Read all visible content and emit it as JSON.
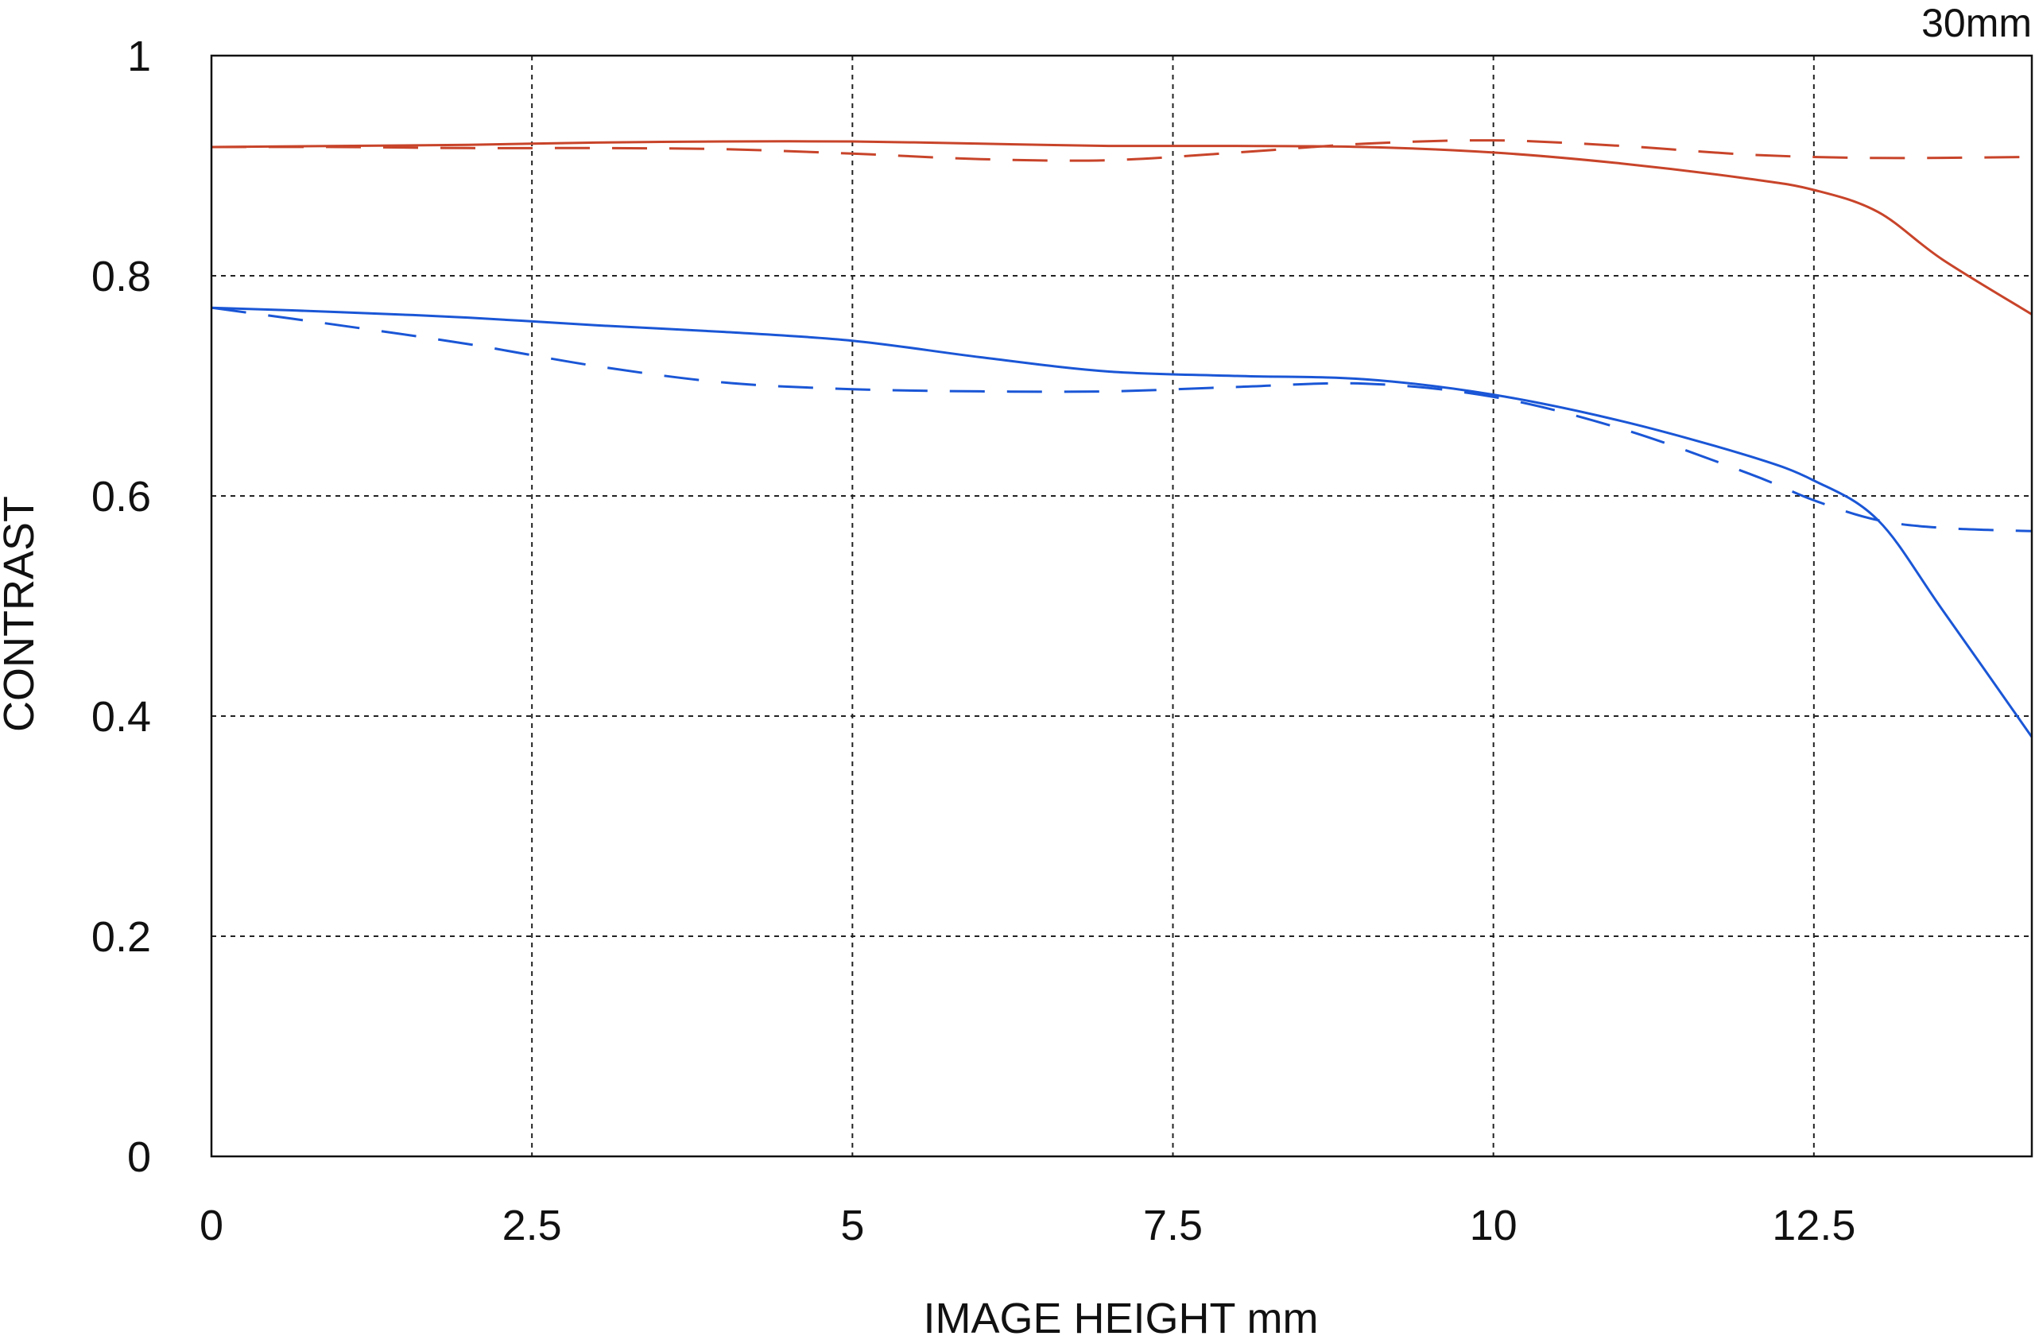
{
  "chart_data": {
    "type": "line",
    "title": "",
    "annotation": "30mm",
    "xlabel": "IMAGE HEIGHT  mm",
    "ylabel": "CONTRAST",
    "xlim": [
      0,
      14.2
    ],
    "ylim": [
      0,
      1
    ],
    "grid": true,
    "x_ticks": [
      0,
      2.5,
      5,
      7.5,
      10,
      12.5
    ],
    "x_tick_labels": [
      "0",
      "2.5",
      "5",
      "7.5",
      "10",
      "12.5"
    ],
    "y_ticks": [
      0,
      0.2,
      0.4,
      0.6,
      0.8,
      1
    ],
    "y_tick_labels": [
      "0",
      "0.2",
      "0.4",
      "0.6",
      "0.8",
      "1"
    ],
    "series": [
      {
        "color": "#c8442a",
        "dash": "solid",
        "x": [
          0,
          1,
          2,
          3,
          4,
          5,
          6,
          7,
          8,
          9,
          10,
          11,
          12,
          12.5,
          13,
          13.5,
          14.2
        ],
        "y": [
          0.917,
          0.918,
          0.919,
          0.921,
          0.922,
          0.922,
          0.92,
          0.918,
          0.918,
          0.917,
          0.912,
          0.902,
          0.888,
          0.878,
          0.858,
          0.815,
          0.765
        ]
      },
      {
        "color": "#c8442a",
        "dash": "dashed",
        "x": [
          0,
          1,
          2,
          3,
          4,
          5,
          6,
          7,
          8,
          9,
          10,
          11,
          12,
          13,
          14.2
        ],
        "y": [
          0.917,
          0.917,
          0.916,
          0.916,
          0.915,
          0.911,
          0.906,
          0.905,
          0.912,
          0.92,
          0.923,
          0.918,
          0.91,
          0.907,
          0.908
        ]
      },
      {
        "color": "#1a56d6",
        "dash": "solid",
        "x": [
          0,
          1,
          2,
          3,
          4,
          5,
          6,
          7,
          8,
          9,
          10,
          11,
          12,
          12.5,
          13,
          13.5,
          14.2
        ],
        "y": [
          0.771,
          0.767,
          0.762,
          0.755,
          0.749,
          0.741,
          0.726,
          0.713,
          0.709,
          0.706,
          0.692,
          0.668,
          0.636,
          0.614,
          0.578,
          0.497,
          0.381
        ]
      },
      {
        "color": "#1a56d6",
        "dash": "dashed",
        "x": [
          0,
          1,
          2,
          3,
          4,
          5,
          6,
          7,
          8,
          9,
          10,
          11,
          12,
          12.5,
          13,
          13.5,
          14.2
        ],
        "y": [
          0.771,
          0.755,
          0.738,
          0.718,
          0.703,
          0.697,
          0.695,
          0.695,
          0.699,
          0.702,
          0.69,
          0.661,
          0.62,
          0.596,
          0.578,
          0.571,
          0.568
        ]
      }
    ]
  }
}
